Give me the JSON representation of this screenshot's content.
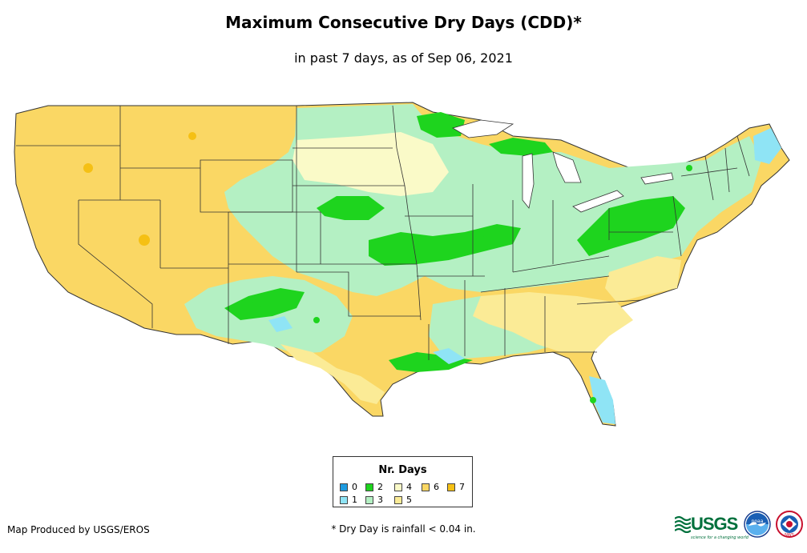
{
  "header": {
    "title": "Maximum Consecutive Dry Days (CDD)*",
    "subtitle": "in past 7 days, as of Sep 06, 2021"
  },
  "legend": {
    "title": "Nr. Days",
    "items": [
      {
        "label": "0",
        "color": "#1e9be0"
      },
      {
        "label": "1",
        "color": "#8fe4f5"
      },
      {
        "label": "2",
        "color": "#1ed41e"
      },
      {
        "label": "3",
        "color": "#b4f0c3"
      },
      {
        "label": "4",
        "color": "#fafac8"
      },
      {
        "label": "5",
        "color": "#fbeb96"
      },
      {
        "label": "6",
        "color": "#fad764"
      },
      {
        "label": "7",
        "color": "#f5c014"
      }
    ]
  },
  "footer": {
    "credit": "Map Produced by USGS/EROS",
    "note": "* Dry Day is rainfall < 0.04 in."
  },
  "logos": {
    "usgs": "USGS",
    "usgs_tagline": "science for a changing world",
    "noaa": "noaa",
    "nws": "NWS"
  }
}
